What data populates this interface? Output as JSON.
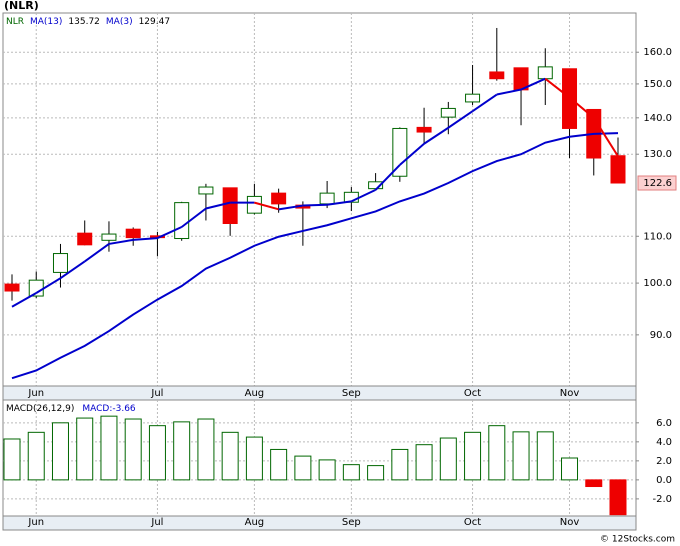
{
  "chart_data": [
    {
      "type": "candlestick",
      "title": "(NLR)",
      "symbol": "NLR",
      "log_scale": true,
      "grid": true,
      "up_color": "#ffffff",
      "down_color": "#ee0000",
      "outline_color": "#006600",
      "categories": [
        null,
        "Jun",
        null,
        null,
        null,
        null,
        "Jul",
        null,
        null,
        null,
        "Aug",
        null,
        null,
        null,
        "Sep",
        null,
        null,
        null,
        null,
        "Oct",
        null,
        null,
        null,
        "Nov",
        null,
        null
      ],
      "open": [
        99.8,
        97.4,
        102.2,
        110.7,
        109.1,
        111.6,
        110.1,
        109.5,
        119.9,
        121.4,
        115.3,
        120.1,
        117.2,
        117.5,
        117.9,
        121.2,
        124.3,
        137.3,
        140.2,
        144.6,
        153.7,
        155.0,
        151.6,
        154.7,
        142.4,
        129.6
      ],
      "high": [
        101.8,
        102.4,
        108.3,
        113.6,
        113.4,
        112.0,
        111.0,
        118.0,
        122.4,
        121.4,
        122.4,
        121.2,
        118.1,
        123.1,
        121.6,
        125.1,
        137.3,
        142.9,
        144.6,
        155.9,
        168.1,
        155.0,
        161.3,
        154.7,
        142.4,
        134.5
      ],
      "low": [
        96.5,
        97.0,
        99.1,
        108.0,
        106.6,
        107.9,
        105.6,
        109.0,
        113.6,
        110.1,
        115.0,
        115.4,
        107.9,
        116.5,
        115.8,
        121.0,
        122.9,
        132.8,
        135.4,
        143.7,
        151.0,
        137.9,
        143.7,
        129.0,
        124.5,
        122.6
      ],
      "close": [
        98.4,
        100.6,
        106.2,
        108.1,
        110.5,
        109.7,
        109.7,
        117.8,
        121.6,
        112.9,
        119.3,
        117.5,
        116.5,
        120.1,
        120.3,
        122.9,
        137.0,
        136.0,
        142.7,
        146.9,
        151.6,
        148.2,
        155.3,
        137.0,
        129.0,
        122.6
      ],
      "lines": [
        {
          "name": "MA(13)",
          "color": "#0000cc",
          "values": [
            82.4,
            83.7,
            85.9,
            88.0,
            90.7,
            93.8,
            96.7,
            99.4,
            103.0,
            105.3,
            107.9,
            109.9,
            111.2,
            112.5,
            114.1,
            115.7,
            118.1,
            120.0,
            122.6,
            125.6,
            128.2,
            130.0,
            133.1,
            134.7,
            135.5,
            135.72
          ]
        },
        {
          "name": "MA(3)",
          "color": "#0000cc",
          "down_color": "#ee0000",
          "values": [
            95.3,
            98.0,
            101.0,
            104.5,
            108.3,
            109.2,
            109.6,
            112.1,
            116.4,
            117.8,
            117.8,
            116.2,
            117.1,
            117.3,
            118.1,
            120.9,
            127.2,
            132.8,
            137.2,
            141.9,
            146.8,
            148.3,
            151.6,
            145.9,
            140.0,
            129.47
          ]
        }
      ],
      "ylim": [
        81.1,
        173.3
      ],
      "yticks": [
        {
          "value": 90,
          "label": "90.0"
        },
        {
          "value": 100,
          "label": "100.0"
        },
        {
          "value": 110,
          "label": "110.0"
        },
        {
          "value": 130,
          "label": "130.0"
        },
        {
          "value": 140,
          "label": "140.0"
        },
        {
          "value": 150,
          "label": "150.0"
        },
        {
          "value": 160,
          "label": "160.0"
        }
      ]
    },
    {
      "type": "bar",
      "title": "MACD(26,12,9)",
      "grid": true,
      "categories": [
        null,
        "Jun",
        null,
        null,
        null,
        null,
        "Jul",
        null,
        null,
        null,
        "Aug",
        null,
        null,
        null,
        "Sep",
        null,
        null,
        null,
        null,
        "Oct",
        null,
        null,
        null,
        "Nov",
        null,
        null
      ],
      "series": [
        {
          "name": "MACD:",
          "color": "#ffffff",
          "outline_color": "#006600",
          "negative_color": "#ee0000",
          "values": [
            4.3,
            5.0,
            6.0,
            6.5,
            6.7,
            6.4,
            5.7,
            6.1,
            6.4,
            5.0,
            4.5,
            3.2,
            2.5,
            2.1,
            1.6,
            1.5,
            3.2,
            3.7,
            4.4,
            5.0,
            5.7,
            5.05,
            5.05,
            2.3,
            -0.7,
            -3.66
          ]
        }
      ],
      "ylim": [
        -3.8,
        8.4
      ],
      "yticks": [
        {
          "value": -2,
          "label": "-2.0"
        },
        {
          "value": 0,
          "label": "0.0"
        },
        {
          "value": 2,
          "label": "2.0"
        },
        {
          "value": 4,
          "label": "4.0"
        },
        {
          "value": 6,
          "label": "6.0"
        }
      ]
    }
  ],
  "footer": "© 12Stocks.com"
}
